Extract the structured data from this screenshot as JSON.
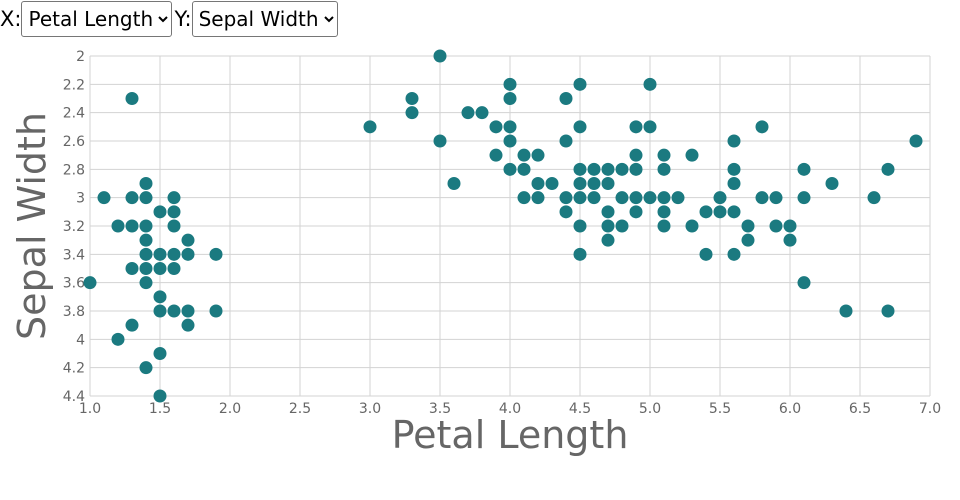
{
  "controls": {
    "x_label": "X:",
    "y_label": "Y:",
    "x_selected": "Petal Length",
    "y_selected": "Sepal Width"
  },
  "chart_data": {
    "type": "scatter",
    "xlabel": "Petal Length",
    "ylabel": "Sepal Width",
    "xlim": [
      1.0,
      7.0
    ],
    "ylim": [
      2.0,
      4.4
    ],
    "y_inverted": true,
    "grid": true,
    "x_ticks": [
      "1.0",
      "1.5",
      "2.0",
      "2.5",
      "3.0",
      "3.5",
      "4.0",
      "4.5",
      "5.0",
      "5.5",
      "6.0",
      "6.5",
      "7.0"
    ],
    "y_ticks": [
      "2",
      "2.2",
      "2.4",
      "2.6",
      "2.8",
      "3",
      "3.2",
      "3.4",
      "3.6",
      "3.8",
      "4",
      "4.2",
      "4.4"
    ],
    "point_color": "#1b7a80",
    "points": [
      [
        1.0,
        3.6
      ],
      [
        1.1,
        3.0
      ],
      [
        1.2,
        3.2
      ],
      [
        1.2,
        4.0
      ],
      [
        1.3,
        2.3
      ],
      [
        1.3,
        3.0
      ],
      [
        1.3,
        3.2
      ],
      [
        1.3,
        3.5
      ],
      [
        1.3,
        3.9
      ],
      [
        1.4,
        2.9
      ],
      [
        1.4,
        3.0
      ],
      [
        1.4,
        3.2
      ],
      [
        1.4,
        3.3
      ],
      [
        1.4,
        3.4
      ],
      [
        1.4,
        3.5
      ],
      [
        1.4,
        3.6
      ],
      [
        1.4,
        4.2
      ],
      [
        1.5,
        3.1
      ],
      [
        1.5,
        3.4
      ],
      [
        1.5,
        3.5
      ],
      [
        1.5,
        3.7
      ],
      [
        1.5,
        3.8
      ],
      [
        1.5,
        4.1
      ],
      [
        1.5,
        4.4
      ],
      [
        1.6,
        3.0
      ],
      [
        1.6,
        3.1
      ],
      [
        1.6,
        3.2
      ],
      [
        1.6,
        3.4
      ],
      [
        1.6,
        3.5
      ],
      [
        1.6,
        3.8
      ],
      [
        1.7,
        3.3
      ],
      [
        1.7,
        3.4
      ],
      [
        1.7,
        3.8
      ],
      [
        1.7,
        3.9
      ],
      [
        1.9,
        3.4
      ],
      [
        1.9,
        3.8
      ],
      [
        3.0,
        2.5
      ],
      [
        3.3,
        2.3
      ],
      [
        3.3,
        2.4
      ],
      [
        3.5,
        2.0
      ],
      [
        3.5,
        2.6
      ],
      [
        3.6,
        2.9
      ],
      [
        3.7,
        2.4
      ],
      [
        3.8,
        2.4
      ],
      [
        3.9,
        2.5
      ],
      [
        3.9,
        2.7
      ],
      [
        4.0,
        2.2
      ],
      [
        4.0,
        2.3
      ],
      [
        4.0,
        2.5
      ],
      [
        4.0,
        2.6
      ],
      [
        4.0,
        2.8
      ],
      [
        4.1,
        2.7
      ],
      [
        4.1,
        2.8
      ],
      [
        4.1,
        3.0
      ],
      [
        4.2,
        2.7
      ],
      [
        4.2,
        2.9
      ],
      [
        4.2,
        3.0
      ],
      [
        4.3,
        2.9
      ],
      [
        4.4,
        2.3
      ],
      [
        4.4,
        2.6
      ],
      [
        4.4,
        3.0
      ],
      [
        4.4,
        3.1
      ],
      [
        4.5,
        2.2
      ],
      [
        4.5,
        2.5
      ],
      [
        4.5,
        2.8
      ],
      [
        4.5,
        2.9
      ],
      [
        4.5,
        3.0
      ],
      [
        4.5,
        3.2
      ],
      [
        4.5,
        3.4
      ],
      [
        4.6,
        2.8
      ],
      [
        4.6,
        2.9
      ],
      [
        4.6,
        3.0
      ],
      [
        4.7,
        2.8
      ],
      [
        4.7,
        2.9
      ],
      [
        4.7,
        3.1
      ],
      [
        4.7,
        3.2
      ],
      [
        4.7,
        3.3
      ],
      [
        4.8,
        2.8
      ],
      [
        4.8,
        3.0
      ],
      [
        4.8,
        3.2
      ],
      [
        4.9,
        2.5
      ],
      [
        4.9,
        2.7
      ],
      [
        4.9,
        2.8
      ],
      [
        4.9,
        3.0
      ],
      [
        4.9,
        3.1
      ],
      [
        5.0,
        2.2
      ],
      [
        5.0,
        2.5
      ],
      [
        5.0,
        3.0
      ],
      [
        5.1,
        2.7
      ],
      [
        5.1,
        2.8
      ],
      [
        5.1,
        3.0
      ],
      [
        5.1,
        3.1
      ],
      [
        5.1,
        3.2
      ],
      [
        5.2,
        3.0
      ],
      [
        5.3,
        2.7
      ],
      [
        5.3,
        3.2
      ],
      [
        5.4,
        3.1
      ],
      [
        5.4,
        3.4
      ],
      [
        5.5,
        3.0
      ],
      [
        5.5,
        3.1
      ],
      [
        5.6,
        2.6
      ],
      [
        5.6,
        2.8
      ],
      [
        5.6,
        2.9
      ],
      [
        5.6,
        3.1
      ],
      [
        5.6,
        3.4
      ],
      [
        5.7,
        3.2
      ],
      [
        5.7,
        3.3
      ],
      [
        5.8,
        2.5
      ],
      [
        5.8,
        3.0
      ],
      [
        5.9,
        3.0
      ],
      [
        5.9,
        3.2
      ],
      [
        6.0,
        3.2
      ],
      [
        6.0,
        3.3
      ],
      [
        6.1,
        2.8
      ],
      [
        6.1,
        3.0
      ],
      [
        6.1,
        3.6
      ],
      [
        6.3,
        2.9
      ],
      [
        6.4,
        3.8
      ],
      [
        6.6,
        3.0
      ],
      [
        6.7,
        2.8
      ],
      [
        6.7,
        3.8
      ],
      [
        6.9,
        2.6
      ]
    ]
  }
}
